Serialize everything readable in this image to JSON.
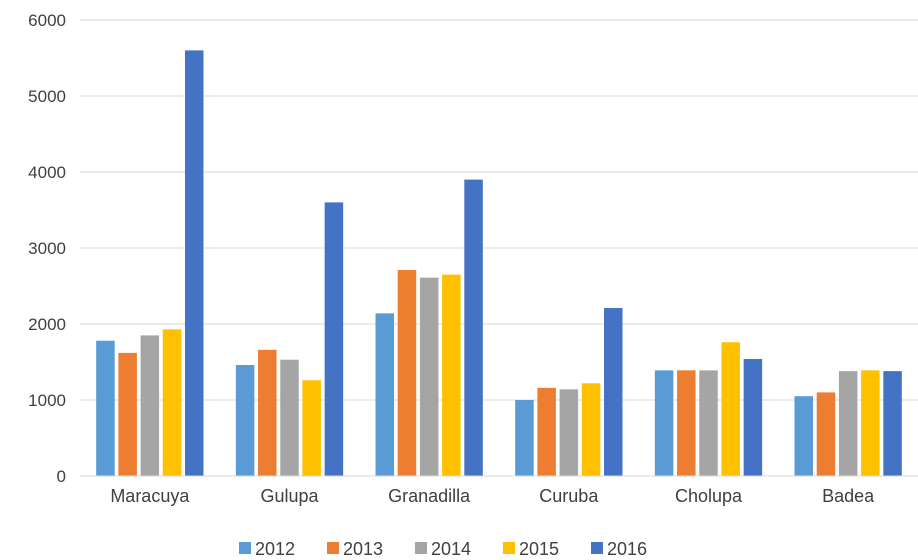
{
  "chart_data": {
    "type": "bar",
    "categories": [
      "Maracuya",
      "Gulupa",
      "Granadilla",
      "Curuba",
      "Cholupa",
      "Badea"
    ],
    "series": [
      {
        "name": "2012",
        "color": "#5b9bd5",
        "values": [
          1780,
          1460,
          2140,
          1000,
          1390,
          1050
        ]
      },
      {
        "name": "2013",
        "color": "#ed7d31",
        "values": [
          1620,
          1660,
          2710,
          1160,
          1390,
          1100
        ]
      },
      {
        "name": "2014",
        "color": "#a5a5a5",
        "values": [
          1850,
          1530,
          2610,
          1140,
          1390,
          1380
        ]
      },
      {
        "name": "2015",
        "color": "#ffc000",
        "values": [
          1930,
          1260,
          2650,
          1220,
          1760,
          1390
        ]
      },
      {
        "name": "2016",
        "color": "#4472c4",
        "values": [
          5600,
          3600,
          3900,
          2210,
          1540,
          1380
        ]
      }
    ],
    "yticks": [
      "0",
      "1000",
      "2000",
      "3000",
      "4000",
      "5000",
      "6000"
    ],
    "ylim": [
      0,
      6000
    ],
    "grid": true,
    "legend_position": "bottom",
    "title": "",
    "xlabel": "",
    "ylabel": ""
  }
}
